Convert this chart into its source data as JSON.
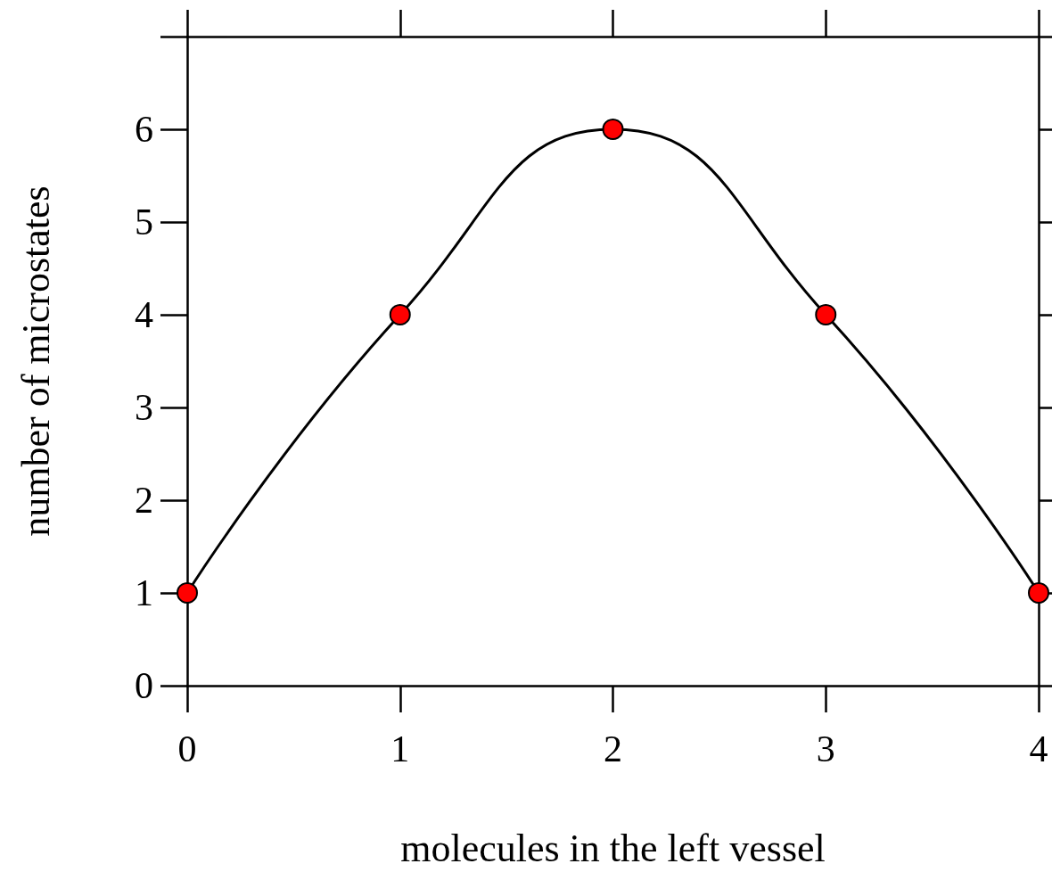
{
  "chart_data": {
    "type": "line",
    "xlabel": "molecules in the left vessel",
    "ylabel": "number of microstates",
    "x": [
      0,
      1,
      2,
      3,
      4
    ],
    "series": [
      {
        "color": "#000000",
        "colors": [
          "#ff0000",
          "#ff0000",
          "#ff0000",
          "#ff0000",
          "#ff0000"
        ],
        "values": [
          1,
          4,
          6,
          4,
          1
        ]
      }
    ],
    "xlim": [
      0,
      4
    ],
    "xticks": [
      0,
      1,
      2,
      3,
      4
    ],
    "ylim": [
      0,
      7
    ],
    "yticks": [
      0,
      1,
      2,
      3,
      4,
      5,
      6,
      {
        "value": 7,
        "label": null
      }
    ],
    "marker": "circle",
    "line_style": "solid"
  }
}
